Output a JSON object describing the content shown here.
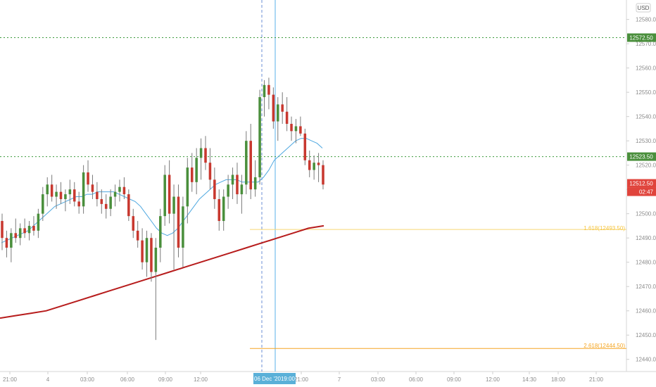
{
  "currency": "USD",
  "x_axis": {
    "tick_labels": [
      "21:00",
      "4",
      "03:00",
      "06:00",
      "09:00",
      "12:00",
      "06 Dec '20",
      "19:00",
      "21:00",
      "7",
      "03:00",
      "06:00",
      "09:00",
      "12:00",
      "14:30",
      "18:00",
      "21:00"
    ],
    "crosshair_label": "06 Dec '20",
    "crosshair_time": "19:00"
  },
  "y_axis": {
    "tick_labels": [
      "12580.00",
      "12570.00",
      "12560.00",
      "12550.00",
      "12540.00",
      "12530.00",
      "12520.00",
      "12510.00",
      "12500.00",
      "12490.00",
      "12480.00",
      "12470.00",
      "12460.00",
      "12450.00",
      "12440.00"
    ]
  },
  "price_tags": [
    {
      "label": "12572.50",
      "color": "#4a8f3c"
    },
    {
      "label": "12523.50",
      "color": "#4a8f3c"
    },
    {
      "label": "12512.50",
      "color": "#e0443c"
    }
  ],
  "countdown": "02:47",
  "fib_labels": [
    {
      "text": "1.618(12493.50)",
      "color": "#f5c542"
    },
    {
      "text": "2.618(12444.50)",
      "color": "#f5a623"
    }
  ],
  "chart_data": {
    "type": "candlestick",
    "symbol_currency": "USD",
    "ylim": [
      12435,
      12588
    ],
    "x_ticks": [
      "21:00",
      "4",
      "03:00",
      "06:00",
      "09:00",
      "12:00",
      "06 Dec '20",
      "19:00",
      "21:00",
      "7",
      "03:00",
      "06:00",
      "09:00",
      "12:00",
      "14:30",
      "18:00",
      "21:00"
    ],
    "ohlc": [
      [
        12497,
        12500,
        12485,
        12490
      ],
      [
        12490,
        12493,
        12482,
        12486
      ],
      [
        12486,
        12494,
        12480,
        12492
      ],
      [
        12492,
        12498,
        12488,
        12490
      ],
      [
        12490,
        12496,
        12487,
        12494
      ],
      [
        12494,
        12498,
        12490,
        12492
      ],
      [
        12492,
        12497,
        12489,
        12495
      ],
      [
        12495,
        12499,
        12491,
        12493
      ],
      [
        12493,
        12502,
        12490,
        12500
      ],
      [
        12500,
        12511,
        12497,
        12508
      ],
      [
        12508,
        12515,
        12503,
        12512
      ],
      [
        12512,
        12516,
        12505,
        12507
      ],
      [
        12507,
        12512,
        12502,
        12509
      ],
      [
        12509,
        12513,
        12504,
        12506
      ],
      [
        12506,
        12510,
        12501,
        12508
      ],
      [
        12508,
        12514,
        12504,
        12510
      ],
      [
        12510,
        12513,
        12503,
        12505
      ],
      [
        12505,
        12509,
        12500,
        12503
      ],
      [
        12503,
        12520,
        12500,
        12517
      ],
      [
        12517,
        12522,
        12509,
        12512
      ],
      [
        12512,
        12516,
        12506,
        12509
      ],
      [
        12509,
        12513,
        12503,
        12506
      ],
      [
        12506,
        12510,
        12500,
        12504
      ],
      [
        12504,
        12508,
        12498,
        12502
      ],
      [
        12502,
        12510,
        12499,
        12507
      ],
      [
        12507,
        12512,
        12503,
        12509
      ],
      [
        12509,
        12514,
        12505,
        12511
      ],
      [
        12511,
        12515,
        12506,
        12508
      ],
      [
        12508,
        12510,
        12497,
        12499
      ],
      [
        12499,
        12502,
        12490,
        12493
      ],
      [
        12493,
        12497,
        12486,
        12489
      ],
      [
        12489,
        12494,
        12477,
        12480
      ],
      [
        12480,
        12493,
        12474,
        12490
      ],
      [
        12490,
        12492,
        12472,
        12476
      ],
      [
        12476,
        12490,
        12448,
        12486
      ],
      [
        12486,
        12502,
        12480,
        12499
      ],
      [
        12499,
        12520,
        12495,
        12516
      ],
      [
        12516,
        12522,
        12496,
        12500
      ],
      [
        12500,
        12512,
        12477,
        12507
      ],
      [
        12507,
        12512,
        12482,
        12486
      ],
      [
        12486,
        12507,
        12478,
        12503
      ],
      [
        12503,
        12523,
        12496,
        12519
      ],
      [
        12519,
        12525,
        12509,
        12513
      ],
      [
        12513,
        12527,
        12508,
        12523
      ],
      [
        12523,
        12531,
        12514,
        12527
      ],
      [
        12527,
        12532,
        12518,
        12521
      ],
      [
        12521,
        12527,
        12510,
        12514
      ],
      [
        12514,
        12519,
        12502,
        12506
      ],
      [
        12506,
        12510,
        12493,
        12497
      ],
      [
        12497,
        12510,
        12493,
        12507
      ],
      [
        12507,
        12516,
        12502,
        12512
      ],
      [
        12512,
        12519,
        12506,
        12516
      ],
      [
        12516,
        12521,
        12504,
        12508
      ],
      [
        12508,
        12516,
        12500,
        12512
      ],
      [
        12512,
        12534,
        12508,
        12530
      ],
      [
        12530,
        12537,
        12506,
        12510
      ],
      [
        12510,
        12522,
        12507,
        12515
      ],
      [
        12515,
        12551,
        12512,
        12548
      ],
      [
        12548,
        12555,
        12540,
        12553
      ],
      [
        12553,
        12556,
        12543,
        12549
      ],
      [
        12549,
        12552,
        12535,
        12538
      ],
      [
        12538,
        12548,
        12530,
        12545
      ],
      [
        12545,
        12550,
        12537,
        12542
      ],
      [
        12542,
        12548,
        12534,
        12537
      ],
      [
        12537,
        12540,
        12530,
        12534
      ],
      [
        12534,
        12539,
        12529,
        12536
      ],
      [
        12536,
        12540,
        12532,
        12533
      ],
      [
        12533,
        12535,
        12520,
        12522
      ],
      [
        12522,
        12526,
        12515,
        12518
      ],
      [
        12518,
        12524,
        12514,
        12521
      ],
      [
        12521,
        12525,
        12513,
        12520
      ],
      [
        12520,
        12522,
        12510,
        12512
      ]
    ],
    "ema_fast": [
      12488,
      12489,
      12490,
      12491,
      12492,
      12493,
      12495,
      12497,
      12499,
      12501,
      12503,
      12504,
      12505,
      12506,
      12507,
      12507,
      12508,
      12508,
      12509,
      12509,
      12509,
      12509,
      12508,
      12507,
      12506,
      12505,
      12503,
      12500,
      12497,
      12494,
      12492,
      12491,
      12492,
      12494,
      12497,
      12500,
      12503,
      12506,
      12508,
      12510,
      12512,
      12513,
      12514,
      12514,
      12514,
      12513,
      12513,
      12513,
      12513,
      12515,
      12518,
      12522,
      12524,
      12526,
      12528,
      12530,
      12531,
      12531,
      12530,
      12529,
      12527
    ],
    "ema_slow": [
      12457,
      12458,
      12459,
      12460,
      12462,
      12464,
      12466,
      12468,
      12470,
      12472,
      12474,
      12476,
      12478,
      12480,
      12482,
      12484,
      12486,
      12488,
      12490,
      12492,
      12494,
      12495
    ],
    "horizontal_levels": [
      12572.5,
      12523.5
    ],
    "fib_levels": [
      {
        "label": "1.618(12493.50)",
        "value": 12493.5
      },
      {
        "label": "2.618(12444.50)",
        "value": 12444.5
      }
    ],
    "last_price": 12512.5
  }
}
